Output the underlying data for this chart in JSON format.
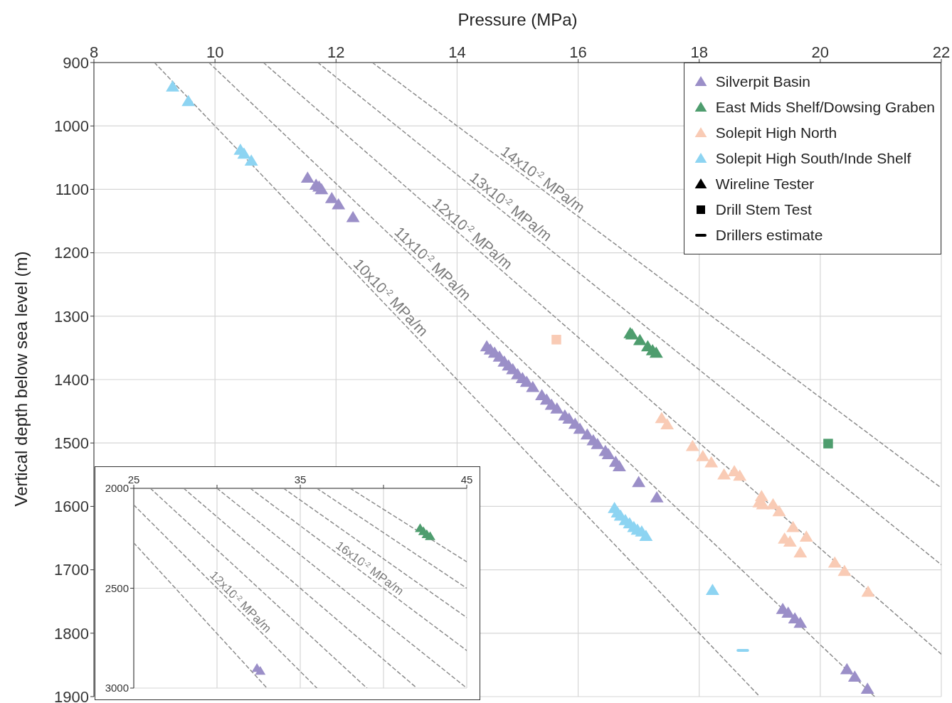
{
  "chart_data": [
    {
      "type": "scatter",
      "xlabel": "Pressure (MPa)",
      "ylabel": "Vertical depth below sea level (m)",
      "xlim": [
        8,
        22
      ],
      "xticks": [
        8,
        10,
        12,
        14,
        16,
        18,
        20,
        22
      ],
      "ylim": [
        1900,
        900
      ],
      "yticks": [
        900,
        1000,
        1100,
        1200,
        1300,
        1400,
        1500,
        1600,
        1700,
        1800,
        1900
      ],
      "grid": true,
      "legend": "top right",
      "marker": "triangle",
      "annotations": [
        "Wireline Tester",
        "Drill Stem Test",
        "Drillers estimate",
        {
          "text": "10x10$^{-2}$ MPa/m",
          "x": 12.8,
          "y": 1280
        },
        {
          "text": "11x10$^{-2}$ MPa/m",
          "x": 13.5,
          "y": 1227
        },
        {
          "text": "12x10$^{-2}$ MPa/m",
          "x": 14.16,
          "y": 1180
        },
        {
          "text": "13x10$^{-2}$ MPa/m",
          "x": 14.8,
          "y": 1138
        },
        {
          "text": "14x10$^{-2}$ MPa/m",
          "x": 15.33,
          "y": 1095
        }
      ],
      "series": [
        {
          "type": "line",
          "color": "#8c8c8c",
          "marker": "none",
          "line_style": "dashed",
          "x": [
            9.0,
            19.0
          ],
          "values": [
            900,
            1900
          ]
        },
        {
          "type": "line",
          "color": "#8c8c8c",
          "marker": "none",
          "line_style": "dashed",
          "x": [
            9.9,
            20.9
          ],
          "values": [
            900,
            1900
          ]
        },
        {
          "type": "line",
          "color": "#8c8c8c",
          "marker": "none",
          "line_style": "dashed",
          "x": [
            10.8,
            22
          ],
          "values": [
            900,
            1833
          ]
        },
        {
          "type": "line",
          "color": "#8c8c8c",
          "marker": "none",
          "line_style": "dashed",
          "x": [
            11.7,
            22
          ],
          "values": [
            900,
            1692
          ]
        },
        {
          "type": "line",
          "color": "#8c8c8c",
          "marker": "none",
          "line_style": "dashed",
          "x": [
            12.6,
            22
          ],
          "values": [
            900,
            1571
          ]
        },
        {
          "name": "Silverpit Basin",
          "color": "#9b8fc8",
          "x": [
            11.53,
            11.67,
            11.72,
            11.76,
            11.93,
            12.04,
            12.28,
            14.49,
            14.55,
            14.62,
            14.7,
            14.78,
            14.85,
            14.92,
            15.0,
            15.08,
            15.15,
            15.25,
            15.4,
            15.48,
            15.56,
            15.65,
            15.78,
            15.85,
            15.95,
            16.03,
            16.15,
            16.25,
            16.32,
            16.45,
            16.5,
            16.62,
            16.68,
            17.0,
            17.3,
            19.38,
            19.47,
            19.58,
            19.67,
            20.44,
            20.57,
            20.78
          ],
          "values": [
            1082,
            1093,
            1096,
            1100,
            1114,
            1124,
            1144,
            1348,
            1353,
            1358,
            1364,
            1372,
            1378,
            1384,
            1392,
            1398,
            1404,
            1412,
            1425,
            1432,
            1440,
            1446,
            1457,
            1462,
            1470,
            1478,
            1487,
            1496,
            1502,
            1513,
            1518,
            1530,
            1537,
            1562,
            1586,
            1762,
            1768,
            1777,
            1784,
            1857,
            1869,
            1888
          ]
        },
        {
          "name": "East Mids Shelf/Dowsing Graben",
          "color": "#4e9d6e",
          "x": [
            16.86,
            16.89,
            17.02,
            17.15,
            17.23,
            17.29
          ],
          "values": [
            1327,
            1329,
            1338,
            1348,
            1354,
            1358
          ]
        },
        {
          "name": "Solepit High North",
          "color": "#f9cbb5",
          "x": [
            17.38,
            17.47,
            17.89,
            18.06,
            18.2,
            18.41,
            18.58,
            18.67,
            19.03,
            18.99,
            19.05,
            19.22,
            19.32,
            19.55,
            19.77,
            19.41,
            19.5,
            19.67,
            20.24,
            20.4,
            20.79
          ],
          "values": [
            1461,
            1471,
            1505,
            1521,
            1531,
            1550,
            1545,
            1552,
            1584,
            1594,
            1597,
            1597,
            1608,
            1633,
            1648,
            1651,
            1656,
            1673,
            1689,
            1702,
            1735
          ]
        },
        {
          "name": "Solepit High South/Inde Shelf",
          "color": "#8dd4f2",
          "x": [
            9.3,
            9.56,
            10.42,
            10.48,
            10.6,
            16.6,
            16.65,
            16.7,
            16.78,
            16.85,
            16.92,
            16.98,
            17.05,
            17.12,
            18.22
          ],
          "values": [
            938,
            961,
            1038,
            1044,
            1055,
            1603,
            1610,
            1615,
            1622,
            1627,
            1633,
            1637,
            1640,
            1647,
            1732
          ]
        },
        {
          "color": "#f9cbb5",
          "marker": "square",
          "x": [
            15.64
          ],
          "values": [
            1337
          ]
        },
        {
          "color": "#4e9d6e",
          "marker": "square",
          "x": [
            20.13
          ],
          "values": [
            1501
          ]
        },
        {
          "type": "line",
          "color": "#8dd4f2",
          "marker": "none",
          "line_style": "solid",
          "x": [
            18.64,
            18.8
          ],
          "values": [
            1827,
            1827
          ]
        }
      ]
    },
    {
      "type": "scatter",
      "xlim": [
        25,
        45
      ],
      "xticks": [
        25,
        {
          "value": 30,
          "label": null
        },
        35,
        {
          "value": 40,
          "label": null
        },
        45
      ],
      "ylim": [
        3000,
        2000
      ],
      "yticks": [
        2000,
        2500,
        3000
      ],
      "grid": true,
      "marker": "triangle",
      "annotations": [
        {
          "text": "12x10$^{-2}$ MPa/m",
          "x": 31.1,
          "y": 2595
        },
        {
          "text": "16x10$^{-2}$ MPa/m",
          "x": 38.9,
          "y": 2430
        }
      ],
      "series": [
        {
          "type": "line",
          "color": "#8c8c8c",
          "marker": "none",
          "line_style": "dashed",
          "x": [
            25,
            33
          ],
          "values": [
            2273,
            3000
          ]
        },
        {
          "type": "line",
          "color": "#8c8c8c",
          "marker": "none",
          "line_style": "dashed",
          "x": [
            25,
            36
          ],
          "values": [
            2083,
            3000
          ]
        },
        {
          "type": "line",
          "color": "#8c8c8c",
          "marker": "none",
          "line_style": "dashed",
          "x": [
            26,
            39
          ],
          "values": [
            2000,
            3000
          ]
        },
        {
          "type": "line",
          "color": "#8c8c8c",
          "marker": "none",
          "line_style": "dashed",
          "x": [
            28,
            42
          ],
          "values": [
            2000,
            3000
          ]
        },
        {
          "type": "line",
          "color": "#8c8c8c",
          "marker": "none",
          "line_style": "dashed",
          "x": [
            30,
            45
          ],
          "values": [
            2000,
            3000
          ]
        },
        {
          "type": "line",
          "color": "#8c8c8c",
          "marker": "none",
          "line_style": "dashed",
          "x": [
            32,
            45
          ],
          "values": [
            2000,
            2812
          ]
        },
        {
          "type": "line",
          "color": "#8c8c8c",
          "marker": "none",
          "line_style": "dashed",
          "x": [
            34,
            45
          ],
          "values": [
            2000,
            2647
          ]
        },
        {
          "type": "line",
          "color": "#8c8c8c",
          "marker": "none",
          "line_style": "dashed",
          "x": [
            36,
            45
          ],
          "values": [
            2000,
            2500
          ]
        },
        {
          "type": "line",
          "color": "#8c8c8c",
          "marker": "none",
          "line_style": "dashed",
          "x": [
            38,
            45
          ],
          "values": [
            2000,
            2368
          ]
        },
        {
          "color": "#9b8fc8",
          "x": [
            32.4,
            32.6
          ],
          "values": [
            2900,
            2915
          ]
        },
        {
          "color": "#4e9d6e",
          "x": [
            42.2,
            42.4,
            42.6,
            42.8
          ],
          "values": [
            2200,
            2215,
            2230,
            2240
          ]
        }
      ]
    }
  ]
}
